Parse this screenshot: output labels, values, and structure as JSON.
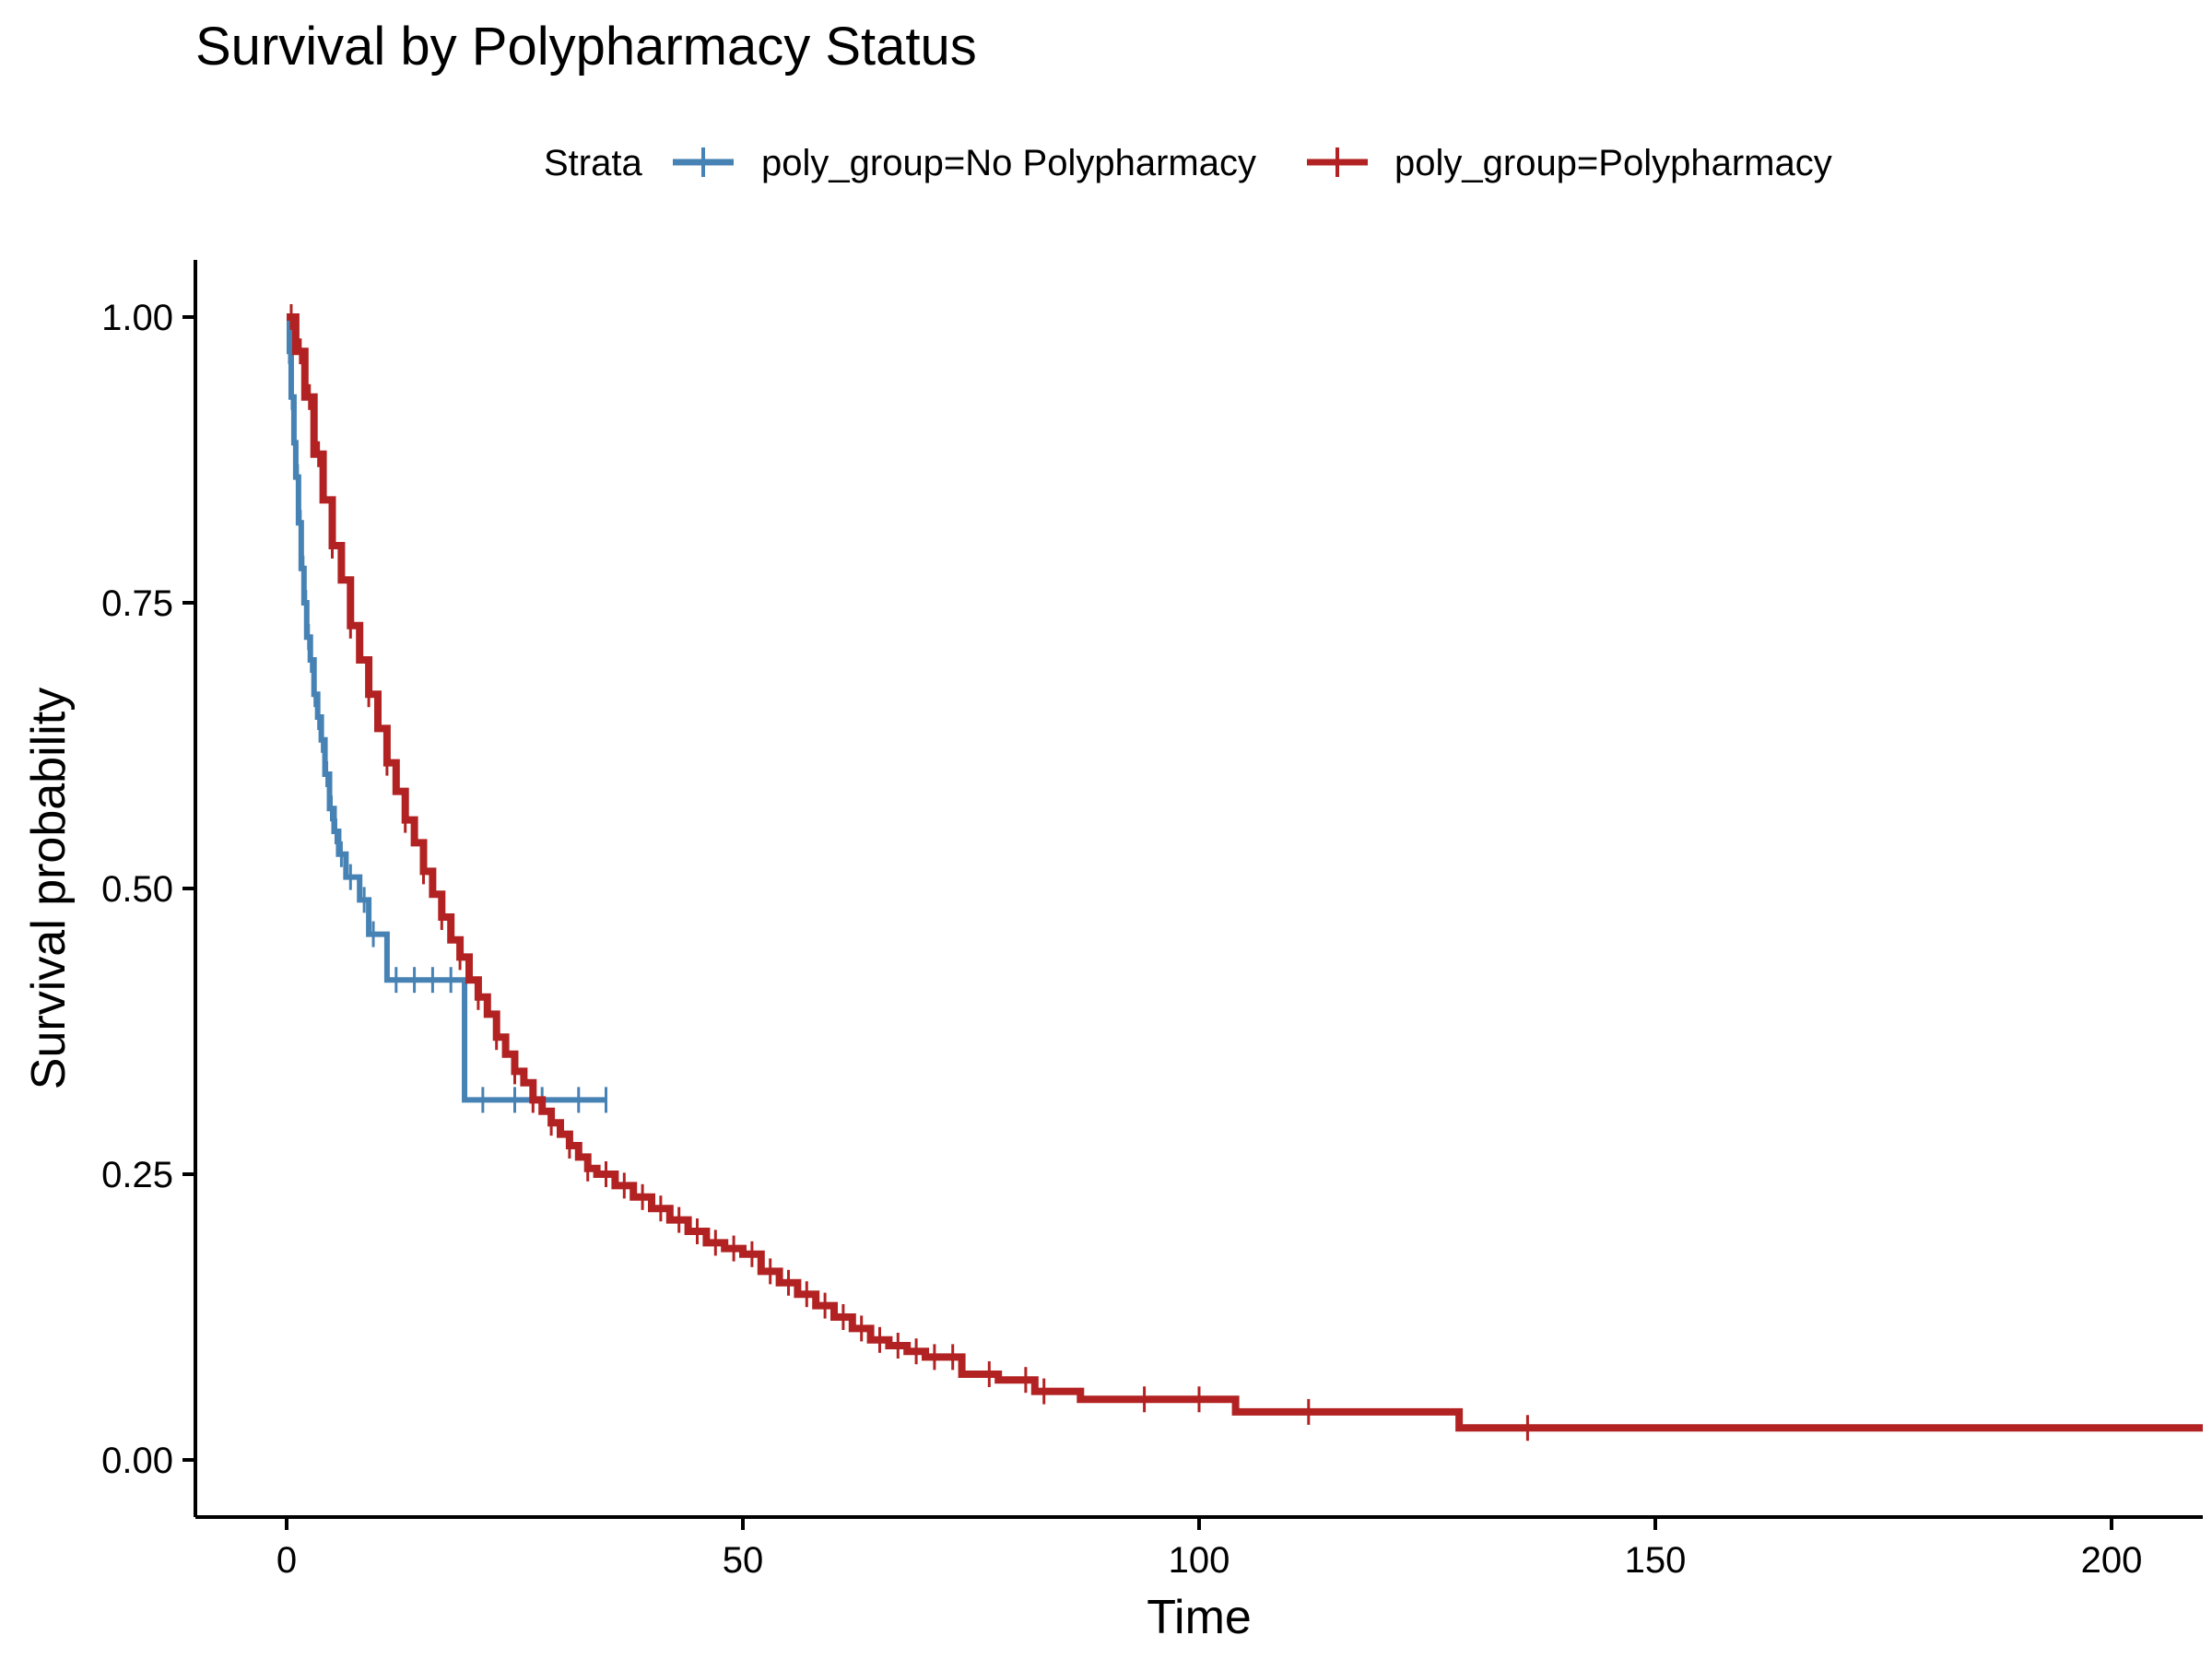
{
  "chart_data": {
    "type": "line",
    "subtype": "kaplan-meier step curves with censoring marks",
    "title": "Survival by Polypharmacy Status",
    "xlabel": "Time",
    "ylabel": "Survival probability",
    "xlim": [
      -10,
      210
    ],
    "ylim": [
      -0.05,
      1.05
    ],
    "x_ticks": [
      0,
      50,
      100,
      150,
      200
    ],
    "y_ticks": [
      0.0,
      0.25,
      0.5,
      0.75,
      1.0
    ],
    "x_tick_labels": [
      "0",
      "50",
      "100",
      "150",
      "200"
    ],
    "y_tick_labels": [
      "0.00",
      "0.25",
      "0.50",
      "0.75",
      "1.00"
    ],
    "legend": {
      "title": "Strata",
      "position": "top",
      "entries": [
        "poly_group=No Polypharmacy",
        "poly_group=Polypharmacy"
      ]
    },
    "series": [
      {
        "name": "poly_group=No Polypharmacy",
        "color": "#4682B4",
        "points": [
          [
            0,
            1.0
          ],
          [
            0.3,
            0.97
          ],
          [
            0.5,
            0.93
          ],
          [
            0.8,
            0.89
          ],
          [
            1.0,
            0.86
          ],
          [
            1.3,
            0.82
          ],
          [
            1.6,
            0.78
          ],
          [
            1.9,
            0.75
          ],
          [
            2.2,
            0.72
          ],
          [
            2.6,
            0.7
          ],
          [
            3.0,
            0.67
          ],
          [
            3.4,
            0.65
          ],
          [
            3.8,
            0.63
          ],
          [
            4.2,
            0.6
          ],
          [
            4.7,
            0.57
          ],
          [
            5.2,
            0.55
          ],
          [
            5.7,
            0.53
          ],
          [
            6.5,
            0.51
          ],
          [
            8.0,
            0.49
          ],
          [
            9.0,
            0.46
          ],
          [
            11.0,
            0.42
          ],
          [
            19.0,
            0.42
          ],
          [
            19.5,
            0.315
          ],
          [
            35.0,
            0.315
          ]
        ],
        "censor_x": [
          0.3,
          0.6,
          0.9,
          1.2,
          1.5,
          1.8,
          2.1,
          2.4,
          2.7,
          3.1,
          3.5,
          3.9,
          4.4,
          4.9,
          5.4,
          6.0,
          7.0,
          8.5,
          9.5,
          12.0,
          14.0,
          16.0,
          18.0,
          21.5,
          25.0,
          28.0,
          32.0,
          35.0
        ]
      },
      {
        "name": "poly_group=Polypharmacy",
        "color": "#B22222",
        "points": [
          [
            0,
            1.0
          ],
          [
            1,
            0.97
          ],
          [
            2,
            0.93
          ],
          [
            3,
            0.88
          ],
          [
            4,
            0.84
          ],
          [
            5,
            0.8
          ],
          [
            6,
            0.77
          ],
          [
            7,
            0.73
          ],
          [
            8,
            0.7
          ],
          [
            9,
            0.67
          ],
          [
            10,
            0.64
          ],
          [
            11,
            0.61
          ],
          [
            12,
            0.585
          ],
          [
            13,
            0.56
          ],
          [
            14,
            0.54
          ],
          [
            15,
            0.515
          ],
          [
            16,
            0.495
          ],
          [
            17,
            0.475
          ],
          [
            18,
            0.455
          ],
          [
            19,
            0.44
          ],
          [
            20,
            0.42
          ],
          [
            21,
            0.405
          ],
          [
            22,
            0.39
          ],
          [
            23,
            0.37
          ],
          [
            24,
            0.355
          ],
          [
            25,
            0.34
          ],
          [
            26,
            0.33
          ],
          [
            27,
            0.315
          ],
          [
            28,
            0.305
          ],
          [
            29,
            0.295
          ],
          [
            30,
            0.285
          ],
          [
            31,
            0.275
          ],
          [
            32,
            0.265
          ],
          [
            33,
            0.255
          ],
          [
            34,
            0.25
          ],
          [
            36,
            0.24
          ],
          [
            38,
            0.23
          ],
          [
            40,
            0.22
          ],
          [
            42,
            0.21
          ],
          [
            44,
            0.2
          ],
          [
            46,
            0.19
          ],
          [
            48,
            0.185
          ],
          [
            50,
            0.18
          ],
          [
            52,
            0.165
          ],
          [
            54,
            0.155
          ],
          [
            56,
            0.145
          ],
          [
            58,
            0.135
          ],
          [
            60,
            0.125
          ],
          [
            62,
            0.115
          ],
          [
            64,
            0.105
          ],
          [
            66,
            0.1
          ],
          [
            68,
            0.095
          ],
          [
            70,
            0.09
          ],
          [
            73,
            0.09
          ],
          [
            74,
            0.075
          ],
          [
            78,
            0.07
          ],
          [
            82,
            0.06
          ],
          [
            86,
            0.06
          ],
          [
            87,
            0.053
          ],
          [
            103,
            0.053
          ],
          [
            104,
            0.042
          ],
          [
            128,
            0.042
          ],
          [
            128.5,
            0.028
          ],
          [
            210,
            0.028
          ]
        ],
        "censor_x": [
          0.5,
          1.5,
          2.5,
          3.5,
          5,
          7,
          9,
          11,
          13,
          15,
          17,
          19,
          21,
          23,
          25,
          27,
          29,
          31,
          33,
          35,
          37,
          39,
          41,
          43,
          45,
          47,
          49,
          51,
          53,
          55,
          57,
          59,
          61,
          63,
          65,
          67,
          69,
          71,
          73,
          77,
          81,
          83,
          94,
          100,
          112,
          136
        ]
      }
    ]
  }
}
